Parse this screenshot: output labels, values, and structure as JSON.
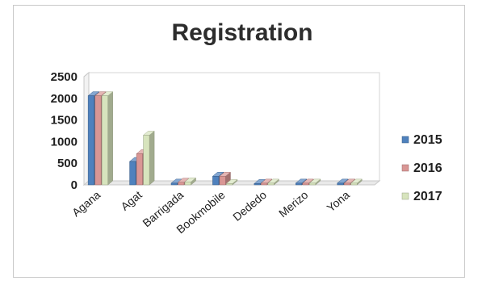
{
  "chart_data": {
    "type": "bar",
    "title": "Registration",
    "xlabel": "",
    "ylabel": "",
    "ylim": [
      0,
      2500
    ],
    "yticks": [
      0,
      500,
      1000,
      1500,
      2000,
      2500
    ],
    "grid": true,
    "legend_position": "right",
    "categories": [
      "Agana",
      "Agat",
      "Barrigada",
      "Bookmobile",
      "Dededo",
      "Merizo",
      "Yona"
    ],
    "series": [
      {
        "name": "2015",
        "color": "#4f81bd",
        "values": [
          2060,
          540,
          40,
          200,
          30,
          40,
          40
        ]
      },
      {
        "name": "2016",
        "color": "#d99694",
        "values": [
          2060,
          720,
          60,
          200,
          40,
          40,
          40
        ]
      },
      {
        "name": "2017",
        "color": "#d7e4bd",
        "values": [
          2060,
          1150,
          70,
          30,
          40,
          40,
          40
        ]
      }
    ]
  }
}
